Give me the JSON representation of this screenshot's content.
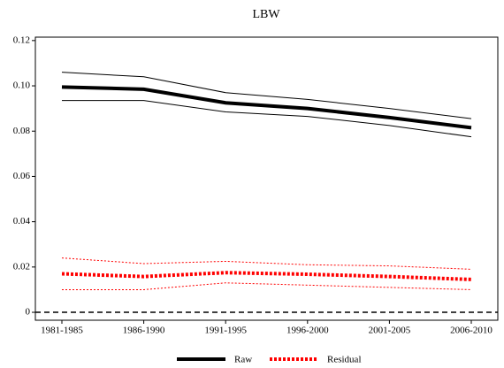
{
  "chart_data": {
    "type": "line",
    "title": "LBW",
    "categories": [
      "1981-1985",
      "1986-1990",
      "1991-1995",
      "1996-2000",
      "2001-2005",
      "2006-2010"
    ],
    "series": [
      {
        "name": "Raw",
        "color": "#000000",
        "style": "solid",
        "values": [
          0.0995,
          0.0985,
          0.0925,
          0.09,
          0.086,
          0.0815
        ],
        "upper": [
          0.106,
          0.104,
          0.097,
          0.094,
          0.09,
          0.0855
        ],
        "lower": [
          0.0935,
          0.0935,
          0.0885,
          0.0865,
          0.0825,
          0.0775
        ]
      },
      {
        "name": "Residual",
        "color": "#ff0000",
        "style": "dotted",
        "values": [
          0.017,
          0.0158,
          0.0175,
          0.0168,
          0.0158,
          0.0145
        ],
        "upper": [
          0.024,
          0.0215,
          0.0225,
          0.021,
          0.0205,
          0.019
        ],
        "lower": [
          0.01,
          0.01,
          0.013,
          0.012,
          0.011,
          0.01
        ]
      }
    ],
    "ylim": [
      -0.0035,
      0.1215
    ],
    "yticks": [
      0,
      0.02,
      0.04,
      0.06,
      0.08,
      {
        "value": 0.1,
        "label": "0.10"
      },
      0.12
    ],
    "reference_line": 0,
    "legend": "bottom"
  }
}
